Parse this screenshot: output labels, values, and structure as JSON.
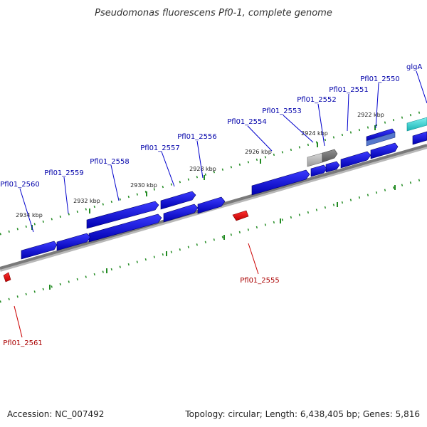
{
  "title": "Pseudomonas fluorescens Pf0-1, complete genome",
  "footer": {
    "accession": "Accession: NC_007492",
    "summary": "Topology: circular; Length: 6,438,405 bp; Genes: 5,816"
  },
  "colors": {
    "forward_gene": "#0000cc",
    "reverse_gene": "#ee0000",
    "glgA_gene": "#22c8c8",
    "ruler_ticks": "#228b22",
    "backbone": "#808080",
    "forward_label": "#0000aa",
    "reverse_label": "#aa0000",
    "selected_gene": "#999999"
  },
  "tick_labels": [
    "2922 kbp",
    "2924 kbp",
    "2926 kbp",
    "2928 kbp",
    "2930 kbp",
    "2932 kbp",
    "2934 kbp"
  ],
  "gene_labels": {
    "forward": [
      "glgA",
      "Pfl01_2550",
      "Pfl01_2551",
      "Pfl01_2552",
      "Pfl01_2553",
      "Pfl01_2554",
      "Pfl01_2556",
      "Pfl01_2557",
      "Pfl01_2558",
      "Pfl01_2559",
      "Pfl01_2560"
    ],
    "reverse": [
      "Pfl01_2555",
      "Pfl01_2561"
    ]
  }
}
